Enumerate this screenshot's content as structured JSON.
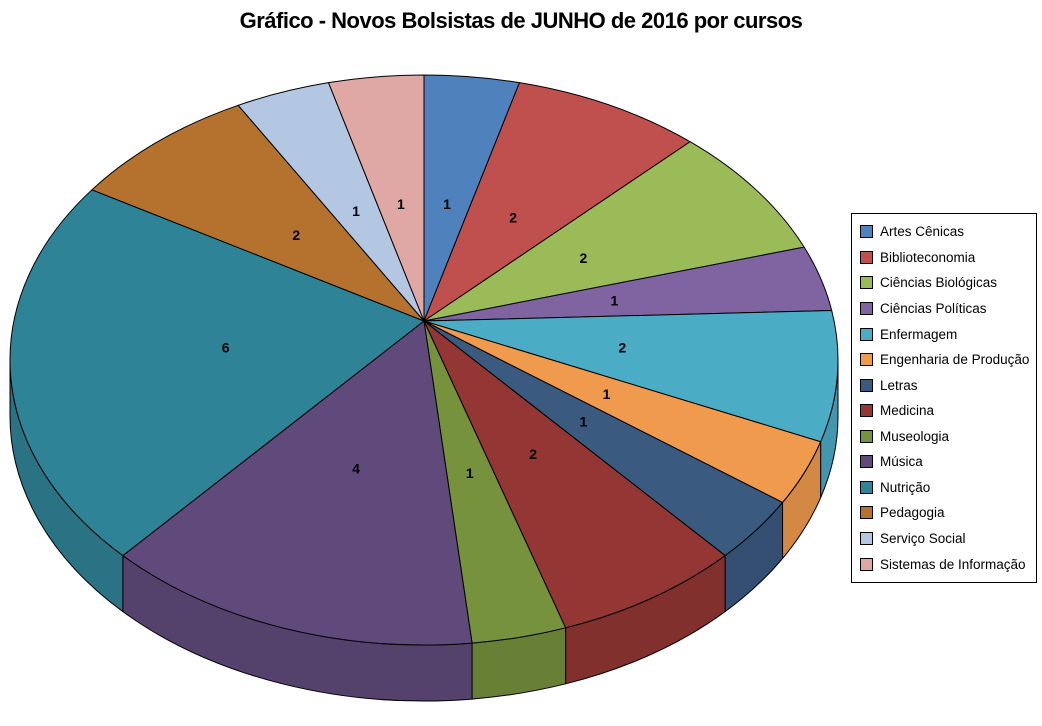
{
  "chart_data": {
    "type": "pie",
    "style": "3d",
    "title": "Gráfico - Novos Bolsistas de JUNHO de 2016 por cursos",
    "direction": "clockwise",
    "start_angle_deg": 0,
    "total": 27,
    "legend_position": "right",
    "data_labels": "values",
    "grid": false,
    "categories": [
      "Artes Cênicas",
      "Biblioteconomia",
      "Ciências Biológicas",
      "Ciências Políticas",
      "Enfermagem",
      "Engenharia de Produção",
      "Letras",
      "Medicina",
      "Museologia",
      "Música",
      "Nutrição",
      "Pedagogia",
      "Serviço Social",
      "Sistemas de Informação"
    ],
    "values": [
      1,
      2,
      2,
      1,
      2,
      1,
      1,
      2,
      1,
      4,
      6,
      2,
      1,
      1
    ],
    "colors": [
      "#4F81BD",
      "#C0504D",
      "#9BBB59",
      "#8064A2",
      "#4BACC6",
      "#F09A4D",
      "#3B5A80",
      "#943634",
      "#76923C",
      "#5F4A7B",
      "#2F8396",
      "#B5722F",
      "#B3C7E2",
      "#E0A8A4"
    ]
  },
  "styles": {
    "background": "#FFFFFF",
    "slice_border": "#000000",
    "value_label_color": "#000000",
    "legend_border": "#000000",
    "legend_text_color": "#000000",
    "title_color": "#000000"
  }
}
